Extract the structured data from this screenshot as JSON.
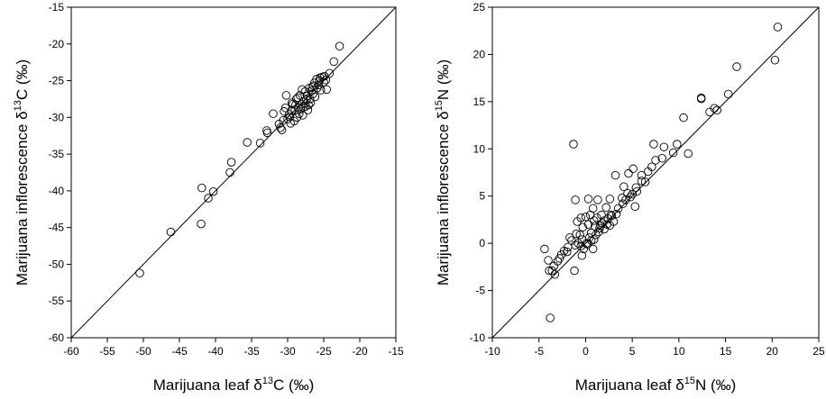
{
  "chart_data": [
    {
      "type": "scatter",
      "title": "",
      "xlabel": {
        "pre": "Marijuana leaf ",
        "delta": "δ",
        "sup": "13",
        "post": "C (‰)"
      },
      "ylabel": {
        "pre": "Marijuana inflorescence ",
        "delta": "δ",
        "sup": "13",
        "post": "C (‰)"
      },
      "xlim": [
        -60,
        -15
      ],
      "ylim": [
        -60,
        -15
      ],
      "xticks": [
        -60,
        -55,
        -50,
        -45,
        -40,
        -35,
        -30,
        -25,
        -20,
        -15
      ],
      "yticks": [
        -60,
        -55,
        -50,
        -45,
        -40,
        -35,
        -30,
        -25,
        -20,
        -15
      ],
      "reference_line": {
        "from": [
          -60,
          -60
        ],
        "to": [
          -15,
          -15
        ]
      },
      "points": [
        [
          -50.5,
          -51.2
        ],
        [
          -46.2,
          -45.6
        ],
        [
          -42.0,
          -44.5
        ],
        [
          -41.9,
          -39.6
        ],
        [
          -41.0,
          -41.0
        ],
        [
          -40.3,
          -40.1
        ],
        [
          -38.0,
          -37.5
        ],
        [
          -37.8,
          -36.1
        ],
        [
          -35.6,
          -33.4
        ],
        [
          -33.8,
          -33.5
        ],
        [
          -32.9,
          -31.8
        ],
        [
          -32.8,
          -32.1
        ],
        [
          -32.0,
          -29.5
        ],
        [
          -31.0,
          -31.4
        ],
        [
          -30.8,
          -31.7
        ],
        [
          -30.6,
          -30.4
        ],
        [
          -30.3,
          -28.7
        ],
        [
          -30.2,
          -27.0
        ],
        [
          -30.0,
          -30.2
        ],
        [
          -29.8,
          -29.6
        ],
        [
          -29.6,
          -30.8
        ],
        [
          -29.5,
          -29.1
        ],
        [
          -29.3,
          -28.2
        ],
        [
          -29.1,
          -30.5
        ],
        [
          -29.0,
          -29.0
        ],
        [
          -28.8,
          -27.5
        ],
        [
          -28.7,
          -30.0
        ],
        [
          -28.5,
          -28.7
        ],
        [
          -28.4,
          -29.5
        ],
        [
          -28.3,
          -27.0
        ],
        [
          -28.1,
          -28.2
        ],
        [
          -28.0,
          -26.2
        ],
        [
          -27.9,
          -29.7
        ],
        [
          -27.7,
          -27.8
        ],
        [
          -27.6,
          -26.5
        ],
        [
          -27.5,
          -28.5
        ],
        [
          -27.3,
          -27.1
        ],
        [
          -27.2,
          -29.0
        ],
        [
          -27.0,
          -26.0
        ],
        [
          -26.9,
          -27.5
        ],
        [
          -26.8,
          -28.0
        ],
        [
          -26.6,
          -25.9
        ],
        [
          -26.5,
          -26.8
        ],
        [
          -26.3,
          -25.3
        ],
        [
          -26.2,
          -27.2
        ],
        [
          -26.0,
          -24.8
        ],
        [
          -25.9,
          -26.0
        ],
        [
          -25.7,
          -25.6
        ],
        [
          -25.5,
          -24.6
        ],
        [
          -25.4,
          -26.3
        ],
        [
          -25.2,
          -24.5
        ],
        [
          -25.0,
          -25.2
        ],
        [
          -24.7,
          -24.9
        ],
        [
          -24.6,
          -26.2
        ],
        [
          -24.2,
          -24.0
        ],
        [
          -23.6,
          -22.4
        ],
        [
          -22.8,
          -20.3
        ],
        [
          -28.2,
          -28.9
        ],
        [
          -29.4,
          -28.0
        ],
        [
          -27.8,
          -28.6
        ],
        [
          -28.6,
          -27.3
        ],
        [
          -27.4,
          -27.6
        ],
        [
          -26.7,
          -26.4
        ],
        [
          -29.7,
          -29.9
        ],
        [
          -28.9,
          -28.3
        ],
        [
          -27.1,
          -28.3
        ],
        [
          -26.4,
          -25.7
        ],
        [
          -25.6,
          -25.0
        ],
        [
          -24.9,
          -24.4
        ],
        [
          -30.5,
          -29.2
        ],
        [
          -31.2,
          -30.9
        ]
      ]
    },
    {
      "type": "scatter",
      "title": "",
      "xlabel": {
        "pre": "Marijuana leaf ",
        "delta": "δ",
        "sup": "15",
        "post": "N (‰)"
      },
      "ylabel": {
        "pre": "Marijuana inflorescence ",
        "delta": "δ",
        "sup": "15",
        "post": "N (‰)"
      },
      "xlim": [
        -10,
        25
      ],
      "ylim": [
        -10,
        25
      ],
      "xticks": [
        -10,
        -5,
        0,
        5,
        10,
        15,
        20,
        25
      ],
      "yticks": [
        -10,
        -5,
        0,
        5,
        10,
        15,
        20,
        25
      ],
      "reference_line": {
        "from": [
          -10,
          -10
        ],
        "to": [
          25,
          25
        ]
      },
      "points": [
        [
          20.6,
          22.9
        ],
        [
          16.2,
          18.7
        ],
        [
          20.3,
          19.4
        ],
        [
          15.3,
          15.8
        ],
        [
          12.4,
          15.3
        ],
        [
          12.4,
          15.4
        ],
        [
          13.8,
          14.3
        ],
        [
          14.1,
          14.1
        ],
        [
          13.3,
          13.9
        ],
        [
          10.5,
          13.3
        ],
        [
          9.8,
          10.5
        ],
        [
          8.4,
          10.2
        ],
        [
          7.3,
          10.5
        ],
        [
          9.4,
          9.6
        ],
        [
          11.0,
          9.5
        ],
        [
          8.2,
          9.0
        ],
        [
          7.1,
          8.1
        ],
        [
          6.7,
          7.6
        ],
        [
          7.5,
          8.8
        ],
        [
          5.1,
          7.9
        ],
        [
          4.6,
          7.4
        ],
        [
          6.0,
          6.6
        ],
        [
          5.4,
          5.9
        ],
        [
          3.2,
          7.2
        ],
        [
          4.5,
          5.3
        ],
        [
          3.9,
          4.8
        ],
        [
          5.0,
          5.2
        ],
        [
          4.1,
          6.0
        ],
        [
          2.6,
          4.7
        ],
        [
          5.3,
          3.9
        ],
        [
          6.4,
          6.5
        ],
        [
          6.0,
          7.2
        ],
        [
          -1.3,
          10.5
        ],
        [
          -1.1,
          4.6
        ],
        [
          0.3,
          4.7
        ],
        [
          1.3,
          4.6
        ],
        [
          0.8,
          3.7
        ],
        [
          2.2,
          3.8
        ],
        [
          2.7,
          3.0
        ],
        [
          1.7,
          3.0
        ],
        [
          1.2,
          2.7
        ],
        [
          0.9,
          2.4
        ],
        [
          0.3,
          2.0
        ],
        [
          -0.3,
          1.7
        ],
        [
          0.6,
          1.1
        ],
        [
          1.5,
          1.6
        ],
        [
          1.8,
          2.1
        ],
        [
          2.4,
          2.6
        ],
        [
          3.0,
          2.3
        ],
        [
          2.0,
          1.5
        ],
        [
          1.1,
          0.9
        ],
        [
          0.4,
          0.6
        ],
        [
          -0.4,
          0.4
        ],
        [
          -0.8,
          0.0
        ],
        [
          -0.5,
          -0.3
        ],
        [
          -1.1,
          -0.2
        ],
        [
          -1.5,
          0.3
        ],
        [
          -0.2,
          -0.6
        ],
        [
          0.1,
          0.0
        ],
        [
          -1.9,
          -0.4
        ],
        [
          -2.3,
          -0.8
        ],
        [
          -2.6,
          -1.2
        ],
        [
          -3.0,
          -1.9
        ],
        [
          -3.4,
          -2.4
        ],
        [
          -3.6,
          -2.9
        ],
        [
          -3.3,
          -3.3
        ],
        [
          -4.0,
          -1.8
        ],
        [
          -3.9,
          -2.9
        ],
        [
          -4.4,
          -0.6
        ],
        [
          -3.8,
          -7.9
        ],
        [
          -1.2,
          -2.9
        ],
        [
          -0.4,
          -1.3
        ],
        [
          0.8,
          -0.6
        ],
        [
          0.2,
          -0.1
        ],
        [
          -0.6,
          0.9
        ],
        [
          1.0,
          1.8
        ],
        [
          1.6,
          1.9
        ],
        [
          2.3,
          2.0
        ],
        [
          2.8,
          2.9
        ],
        [
          3.5,
          3.7
        ],
        [
          4.3,
          4.6
        ],
        [
          4.8,
          4.9
        ],
        [
          5.5,
          5.5
        ],
        [
          -0.9,
          2.3
        ],
        [
          -0.5,
          2.7
        ],
        [
          0.0,
          2.8
        ],
        [
          0.5,
          3.0
        ],
        [
          -1.0,
          1.0
        ],
        [
          0.6,
          0.3
        ],
        [
          1.4,
          1.2
        ],
        [
          2.0,
          2.4
        ],
        [
          2.6,
          1.9
        ],
        [
          -2.0,
          -0.9
        ],
        [
          -2.8,
          -1.6
        ],
        [
          -1.7,
          0.6
        ],
        [
          0.9,
          0.4
        ],
        [
          3.3,
          3.1
        ],
        [
          4.0,
          4.2
        ]
      ]
    }
  ]
}
